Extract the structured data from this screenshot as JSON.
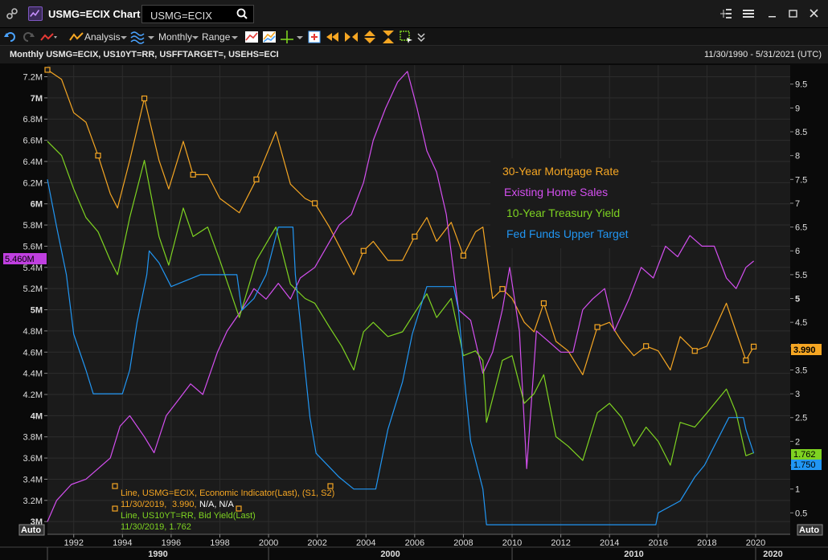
{
  "window": {
    "title": "USMG=ECIX Chart",
    "search_value": "USMG=ECIX"
  },
  "toolbar": {
    "analysis_label": "Analysis",
    "period_label": "Monthly",
    "range_label": "Range"
  },
  "chart_header": {
    "title": "Monthly USMG=ECIX, US10YT=RR, USFFTARGET=, USEHS=ECI",
    "date_range": "11/30/1990 - 5/31/2021 (UTC)"
  },
  "colors": {
    "mortgage": "#f5a623",
    "home_sales": "#d44ff0",
    "treasury": "#7ed321",
    "fedfunds": "#2196f3"
  },
  "chart_data": {
    "type": "line",
    "x_axis": {
      "ticks": [
        "1992",
        "1994",
        "1996",
        "1998",
        "2000",
        "2002",
        "2004",
        "2006",
        "2008",
        "2010",
        "2012",
        "2014",
        "2016",
        "2018",
        "2020"
      ],
      "decades": [
        "1990",
        "2000",
        "2010",
        "2020"
      ],
      "range": [
        1990.92,
        2021.42
      ]
    },
    "left_axis": {
      "ticks": [
        "7.2M",
        "7M",
        "6.8M",
        "6.6M",
        "6.4M",
        "6.2M",
        "6M",
        "5.8M",
        "5.6M",
        "5.4M",
        "5.2M",
        "5M",
        "4.8M",
        "4.6M",
        "4.4M",
        "4.2M",
        "4M",
        "3.8M",
        "3.6M",
        "3.4M",
        "3.2M",
        "3M"
      ],
      "range": [
        2.88,
        7.31
      ],
      "last_value_label": "5.460M"
    },
    "right_axis": {
      "ticks": [
        "9.5",
        "9",
        "8.5",
        "8",
        "7.5",
        "7",
        "6.5",
        "6",
        "5.5",
        "5",
        "4.5",
        "4",
        "3.5",
        "3",
        "2.5",
        "2",
        "1.5",
        "1",
        "0.5"
      ],
      "range": [
        0.05,
        9.9
      ]
    },
    "legend": [
      {
        "name": "30-Year Mortgage Rate"
      },
      {
        "name": "Existing Home Sales"
      },
      {
        "name": "10-Year Treasury Yield"
      },
      {
        "name": "Fed Funds Upper Target"
      }
    ],
    "last_values": {
      "mortgage": "3.990",
      "treasury": "1.762",
      "fedfunds": "1.750"
    },
    "tooltip": {
      "line1": "Line, USMG=ECIX, Economic Indicator(Last), (S1, S2)",
      "line2_date": "11/30/2019,",
      "line2_value": "3.990,",
      "line2_extra": "N/A, N/A",
      "line3": "Line, US10YT=RR, Bid Yield(Last)",
      "line4": "11/30/2019, 1.762"
    },
    "auto_label": "Auto",
    "series": [
      {
        "key": "mortgage",
        "axis": "right",
        "points": [
          [
            1990.92,
            9.8
          ],
          [
            1991.5,
            9.6
          ],
          [
            1992.0,
            8.9
          ],
          [
            1992.5,
            8.7
          ],
          [
            1993.0,
            8.0
          ],
          [
            1993.5,
            7.2
          ],
          [
            1993.8,
            6.9
          ],
          [
            1994.3,
            7.9
          ],
          [
            1994.9,
            9.2
          ],
          [
            1995.5,
            7.9
          ],
          [
            1995.9,
            7.3
          ],
          [
            1996.5,
            8.3
          ],
          [
            1996.9,
            7.6
          ],
          [
            1997.5,
            7.6
          ],
          [
            1998.0,
            7.1
          ],
          [
            1998.8,
            6.8
          ],
          [
            1999.5,
            7.5
          ],
          [
            2000.3,
            8.5
          ],
          [
            2000.9,
            7.4
          ],
          [
            2001.5,
            7.1
          ],
          [
            2001.9,
            7.0
          ],
          [
            2002.5,
            6.5
          ],
          [
            2003.0,
            6.0
          ],
          [
            2003.5,
            5.5
          ],
          [
            2003.9,
            6.0
          ],
          [
            2004.3,
            6.2
          ],
          [
            2004.9,
            5.8
          ],
          [
            2005.5,
            5.8
          ],
          [
            2006.0,
            6.3
          ],
          [
            2006.5,
            6.7
          ],
          [
            2006.9,
            6.2
          ],
          [
            2007.5,
            6.6
          ],
          [
            2008.0,
            5.9
          ],
          [
            2008.5,
            6.4
          ],
          [
            2008.8,
            6.5
          ],
          [
            2009.2,
            5.0
          ],
          [
            2009.6,
            5.2
          ],
          [
            2010.0,
            5.0
          ],
          [
            2010.5,
            4.5
          ],
          [
            2010.9,
            4.3
          ],
          [
            2011.3,
            4.9
          ],
          [
            2011.8,
            4.1
          ],
          [
            2012.3,
            3.9
          ],
          [
            2012.9,
            3.4
          ],
          [
            2013.5,
            4.4
          ],
          [
            2014.0,
            4.5
          ],
          [
            2014.5,
            4.1
          ],
          [
            2015.0,
            3.8
          ],
          [
            2015.5,
            4.0
          ],
          [
            2016.0,
            3.9
          ],
          [
            2016.5,
            3.5
          ],
          [
            2016.9,
            4.2
          ],
          [
            2017.5,
            3.9
          ],
          [
            2018.0,
            4.0
          ],
          [
            2018.8,
            4.9
          ],
          [
            2019.2,
            4.3
          ],
          [
            2019.6,
            3.7
          ],
          [
            2019.92,
            3.99
          ]
        ]
      },
      {
        "key": "home_sales",
        "axis": "left",
        "points": [
          [
            1990.92,
            3.0
          ],
          [
            1991.3,
            3.2
          ],
          [
            1991.9,
            3.35
          ],
          [
            1992.5,
            3.4
          ],
          [
            1993.0,
            3.5
          ],
          [
            1993.5,
            3.6
          ],
          [
            1993.9,
            3.9
          ],
          [
            1994.3,
            4.0
          ],
          [
            1994.9,
            3.8
          ],
          [
            1995.3,
            3.65
          ],
          [
            1995.8,
            4.0
          ],
          [
            1996.3,
            4.15
          ],
          [
            1996.8,
            4.3
          ],
          [
            1997.3,
            4.2
          ],
          [
            1997.9,
            4.6
          ],
          [
            1998.3,
            4.8
          ],
          [
            1998.9,
            5.0
          ],
          [
            1999.4,
            5.2
          ],
          [
            1999.9,
            5.1
          ],
          [
            2000.4,
            5.25
          ],
          [
            2000.9,
            5.1
          ],
          [
            2001.3,
            5.3
          ],
          [
            2001.9,
            5.4
          ],
          [
            2002.4,
            5.6
          ],
          [
            2002.9,
            5.8
          ],
          [
            2003.4,
            5.9
          ],
          [
            2003.9,
            6.2
          ],
          [
            2004.3,
            6.6
          ],
          [
            2004.8,
            6.9
          ],
          [
            2005.3,
            7.15
          ],
          [
            2005.7,
            7.25
          ],
          [
            2006.1,
            6.9
          ],
          [
            2006.5,
            6.5
          ],
          [
            2006.9,
            6.3
          ],
          [
            2007.3,
            5.9
          ],
          [
            2007.8,
            5.0
          ],
          [
            2008.3,
            4.9
          ],
          [
            2008.8,
            4.4
          ],
          [
            2009.2,
            4.6
          ],
          [
            2009.6,
            5.0
          ],
          [
            2009.9,
            5.4
          ],
          [
            2010.3,
            4.8
          ],
          [
            2010.6,
            3.5
          ],
          [
            2011.0,
            4.8
          ],
          [
            2011.5,
            4.7
          ],
          [
            2012.0,
            4.6
          ],
          [
            2012.5,
            4.6
          ],
          [
            2012.9,
            5.0
          ],
          [
            2013.3,
            5.1
          ],
          [
            2013.8,
            5.2
          ],
          [
            2014.2,
            4.8
          ],
          [
            2014.8,
            5.1
          ],
          [
            2015.3,
            5.4
          ],
          [
            2015.8,
            5.3
          ],
          [
            2016.3,
            5.6
          ],
          [
            2016.8,
            5.5
          ],
          [
            2017.3,
            5.7
          ],
          [
            2017.8,
            5.6
          ],
          [
            2018.3,
            5.6
          ],
          [
            2018.8,
            5.3
          ],
          [
            2019.2,
            5.2
          ],
          [
            2019.6,
            5.4
          ],
          [
            2019.92,
            5.46
          ]
        ]
      },
      {
        "key": "treasury",
        "axis": "right",
        "points": [
          [
            1990.92,
            8.3
          ],
          [
            1991.5,
            8.0
          ],
          [
            1992.0,
            7.3
          ],
          [
            1992.5,
            6.7
          ],
          [
            1993.0,
            6.4
          ],
          [
            1993.5,
            5.8
          ],
          [
            1993.8,
            5.5
          ],
          [
            1994.3,
            6.7
          ],
          [
            1994.9,
            7.9
          ],
          [
            1995.5,
            6.3
          ],
          [
            1995.9,
            5.7
          ],
          [
            1996.5,
            6.9
          ],
          [
            1996.9,
            6.3
          ],
          [
            1997.5,
            6.5
          ],
          [
            1998.0,
            5.8
          ],
          [
            1998.8,
            4.6
          ],
          [
            1999.5,
            5.8
          ],
          [
            2000.3,
            6.5
          ],
          [
            2000.9,
            5.3
          ],
          [
            2001.5,
            5.0
          ],
          [
            2001.9,
            4.9
          ],
          [
            2002.5,
            4.4
          ],
          [
            2003.0,
            4.0
          ],
          [
            2003.5,
            3.5
          ],
          [
            2003.9,
            4.3
          ],
          [
            2004.3,
            4.5
          ],
          [
            2004.9,
            4.2
          ],
          [
            2005.5,
            4.3
          ],
          [
            2006.0,
            4.7
          ],
          [
            2006.5,
            5.1
          ],
          [
            2006.9,
            4.6
          ],
          [
            2007.5,
            5.0
          ],
          [
            2008.0,
            3.8
          ],
          [
            2008.5,
            3.9
          ],
          [
            2008.8,
            3.7
          ],
          [
            2008.95,
            2.4
          ],
          [
            2009.2,
            2.9
          ],
          [
            2009.6,
            3.7
          ],
          [
            2010.0,
            3.8
          ],
          [
            2010.5,
            2.8
          ],
          [
            2010.9,
            3.0
          ],
          [
            2011.3,
            3.4
          ],
          [
            2011.8,
            2.1
          ],
          [
            2012.3,
            1.9
          ],
          [
            2012.9,
            1.6
          ],
          [
            2013.5,
            2.6
          ],
          [
            2014.0,
            2.8
          ],
          [
            2014.5,
            2.5
          ],
          [
            2015.0,
            1.9
          ],
          [
            2015.5,
            2.3
          ],
          [
            2016.0,
            2.0
          ],
          [
            2016.5,
            1.5
          ],
          [
            2016.9,
            2.4
          ],
          [
            2017.5,
            2.3
          ],
          [
            2018.0,
            2.6
          ],
          [
            2018.8,
            3.1
          ],
          [
            2019.2,
            2.6
          ],
          [
            2019.6,
            1.7
          ],
          [
            2019.92,
            1.762
          ]
        ]
      },
      {
        "key": "fedfunds",
        "axis": "right",
        "points": [
          [
            1990.92,
            7.5
          ],
          [
            1991.3,
            6.5
          ],
          [
            1991.7,
            5.5
          ],
          [
            1992.0,
            4.25
          ],
          [
            1992.5,
            3.5
          ],
          [
            1992.8,
            3.0
          ],
          [
            1994.0,
            3.0
          ],
          [
            1994.3,
            3.5
          ],
          [
            1994.6,
            4.5
          ],
          [
            1995.0,
            5.5
          ],
          [
            1995.1,
            6.0
          ],
          [
            1995.5,
            5.75
          ],
          [
            1996.0,
            5.25
          ],
          [
            1997.2,
            5.5
          ],
          [
            1998.7,
            5.5
          ],
          [
            1998.9,
            4.75
          ],
          [
            1999.4,
            5.0
          ],
          [
            1999.9,
            5.5
          ],
          [
            2000.4,
            6.5
          ],
          [
            2001.0,
            6.5
          ],
          [
            2001.1,
            5.5
          ],
          [
            2001.4,
            4.0
          ],
          [
            2001.7,
            2.5
          ],
          [
            2001.95,
            1.75
          ],
          [
            2002.9,
            1.25
          ],
          [
            2003.5,
            1.0
          ],
          [
            2004.4,
            1.0
          ],
          [
            2004.9,
            2.25
          ],
          [
            2005.5,
            3.25
          ],
          [
            2005.9,
            4.25
          ],
          [
            2006.5,
            5.25
          ],
          [
            2007.6,
            5.25
          ],
          [
            2007.8,
            4.75
          ],
          [
            2008.1,
            3.0
          ],
          [
            2008.3,
            2.0
          ],
          [
            2008.8,
            1.0
          ],
          [
            2008.95,
            0.25
          ],
          [
            2015.9,
            0.25
          ],
          [
            2016.0,
            0.5
          ],
          [
            2016.9,
            0.75
          ],
          [
            2017.5,
            1.25
          ],
          [
            2017.9,
            1.5
          ],
          [
            2018.4,
            2.0
          ],
          [
            2018.9,
            2.5
          ],
          [
            2019.5,
            2.5
          ],
          [
            2019.6,
            2.25
          ],
          [
            2019.92,
            1.75
          ]
        ]
      }
    ]
  }
}
